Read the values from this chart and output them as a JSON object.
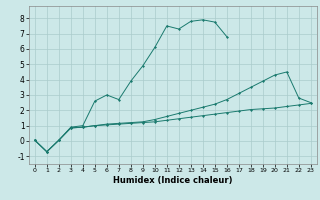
{
  "xlabel": "Humidex (Indice chaleur)",
  "x_values": [
    0,
    1,
    2,
    3,
    4,
    5,
    6,
    7,
    8,
    9,
    10,
    11,
    12,
    13,
    14,
    15,
    16,
    17,
    18,
    19,
    20,
    21,
    22,
    23
  ],
  "line1_y": [
    0.05,
    -0.7,
    0.05,
    0.85,
    0.9,
    1.0,
    1.05,
    1.1,
    1.15,
    1.2,
    1.25,
    1.35,
    1.45,
    1.55,
    1.65,
    1.75,
    1.85,
    1.95,
    2.05,
    2.1,
    2.15,
    2.25,
    2.35,
    2.45
  ],
  "line2_y": [
    0.05,
    -0.7,
    0.05,
    0.85,
    0.9,
    1.0,
    1.1,
    1.15,
    1.2,
    1.25,
    1.4,
    1.6,
    1.8,
    2.0,
    2.2,
    2.4,
    2.7,
    3.1,
    3.5,
    3.9,
    4.3,
    4.5,
    2.8,
    2.5
  ],
  "line3_y": [
    0.05,
    -0.7,
    0.05,
    0.9,
    1.0,
    2.6,
    3.0,
    2.7,
    3.9,
    4.9,
    6.1,
    7.5,
    7.3,
    7.8,
    7.9,
    7.75,
    6.8,
    null,
    null,
    null,
    null,
    null,
    null,
    null
  ],
  "line_color": "#1a7a6e",
  "bg_color": "#cce8e8",
  "grid_color": "#aacccc",
  "ylim": [
    -1.5,
    8.8
  ],
  "xlim": [
    -0.5,
    23.5
  ],
  "yticks": [
    -1,
    0,
    1,
    2,
    3,
    4,
    5,
    6,
    7,
    8
  ],
  "xticks": [
    0,
    1,
    2,
    3,
    4,
    5,
    6,
    7,
    8,
    9,
    10,
    11,
    12,
    13,
    14,
    15,
    16,
    17,
    18,
    19,
    20,
    21,
    22,
    23
  ]
}
